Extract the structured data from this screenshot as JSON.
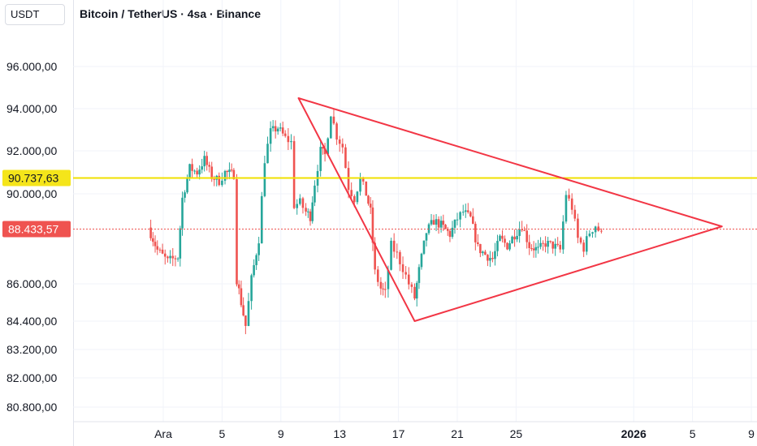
{
  "header": {
    "currency": "USDT",
    "title": "Bitcoin / TetherUS · 4sa · Binance"
  },
  "colors": {
    "up": "#26a69a",
    "down": "#ef5350",
    "triangle": "#f23645",
    "hline": "#f0e000",
    "hline_label_bg": "#f5e51a",
    "current_price_bg": "#ef5350",
    "grid": "#f0f3fa"
  },
  "chart_data": {
    "type": "candlestick",
    "x_ticks": [
      {
        "label": "Ara",
        "day": 1,
        "bold": false
      },
      {
        "label": "5",
        "day": 5,
        "bold": false
      },
      {
        "label": "9",
        "day": 9,
        "bold": false
      },
      {
        "label": "13",
        "day": 13,
        "bold": false
      },
      {
        "label": "17",
        "day": 17,
        "bold": false
      },
      {
        "label": "21",
        "day": 21,
        "bold": false
      },
      {
        "label": "25",
        "day": 25,
        "bold": false
      },
      {
        "label": "2026",
        "day": 33,
        "bold": true
      },
      {
        "label": "5",
        "day": 37,
        "bold": false
      },
      {
        "label": "9",
        "day": 41,
        "bold": false
      }
    ],
    "y_ticks": [
      {
        "label": "96.000,00",
        "value": 96000
      },
      {
        "label": "94.000,00",
        "value": 94000
      },
      {
        "label": "92.000,00",
        "value": 92000
      },
      {
        "label": "90.000,00",
        "value": 90000
      },
      {
        "label": "86.000,00",
        "value": 86000
      },
      {
        "label": "84.400,00",
        "value": 84400
      },
      {
        "label": "83.200,00",
        "value": 83200
      },
      {
        "label": "82.000,00",
        "value": 82000
      },
      {
        "label": "80.800,00",
        "value": 80800
      }
    ],
    "horizontal_line": {
      "value": 90737.63,
      "label": "90.737,63"
    },
    "current_price": {
      "value": 88433.57,
      "label": "88.433,57"
    },
    "triangle": [
      {
        "day": 10.2,
        "price": 94500
      },
      {
        "day": 39.0,
        "price": 88550
      },
      {
        "day": 18.1,
        "price": 84400
      }
    ],
    "close_path": [
      [
        0.0,
        88500
      ],
      [
        0.6,
        87500
      ],
      [
        1.3,
        87000
      ],
      [
        2.0,
        87200
      ],
      [
        2.3,
        89800
      ],
      [
        2.8,
        91200
      ],
      [
        3.3,
        91000
      ],
      [
        3.8,
        91600
      ],
      [
        4.3,
        90800
      ],
      [
        4.8,
        90600
      ],
      [
        5.2,
        91000
      ],
      [
        5.8,
        90900
      ],
      [
        6.0,
        86200
      ],
      [
        6.3,
        85200
      ],
      [
        6.6,
        84200
      ],
      [
        7.0,
        86200
      ],
      [
        7.5,
        88000
      ],
      [
        7.9,
        91600
      ],
      [
        8.3,
        92900
      ],
      [
        8.8,
        93100
      ],
      [
        9.3,
        92600
      ],
      [
        9.7,
        92400
      ],
      [
        9.9,
        89500
      ],
      [
        10.3,
        89600
      ],
      [
        10.7,
        89200
      ],
      [
        11.0,
        89000
      ],
      [
        11.3,
        90500
      ],
      [
        11.7,
        92000
      ],
      [
        12.0,
        91800
      ],
      [
        12.4,
        93800
      ],
      [
        12.8,
        92700
      ],
      [
        13.2,
        92200
      ],
      [
        13.6,
        90300
      ],
      [
        14.0,
        89800
      ],
      [
        14.4,
        90700
      ],
      [
        14.8,
        90000
      ],
      [
        15.1,
        89200
      ],
      [
        15.4,
        86500
      ],
      [
        15.8,
        85800
      ],
      [
        16.1,
        85600
      ],
      [
        16.5,
        87700
      ],
      [
        16.9,
        87300
      ],
      [
        17.3,
        86700
      ],
      [
        17.7,
        86000
      ],
      [
        18.1,
        85400
      ],
      [
        18.4,
        86600
      ],
      [
        18.9,
        88300
      ],
      [
        19.4,
        88800
      ],
      [
        19.9,
        88600
      ],
      [
        20.5,
        88200
      ],
      [
        21.0,
        88900
      ],
      [
        21.4,
        89200
      ],
      [
        21.9,
        88900
      ],
      [
        22.4,
        87600
      ],
      [
        22.9,
        87300
      ],
      [
        23.4,
        87100
      ],
      [
        23.9,
        88000
      ],
      [
        24.4,
        87700
      ],
      [
        24.9,
        88200
      ],
      [
        25.4,
        88600
      ],
      [
        25.9,
        87700
      ],
      [
        26.5,
        87500
      ],
      [
        27.0,
        87800
      ],
      [
        27.5,
        87700
      ],
      [
        28.0,
        87500
      ],
      [
        28.4,
        90000
      ],
      [
        28.8,
        89400
      ],
      [
        29.2,
        88000
      ],
      [
        29.6,
        87600
      ],
      [
        30.0,
        88300
      ],
      [
        30.4,
        88600
      ],
      [
        30.8,
        88200
      ]
    ]
  }
}
